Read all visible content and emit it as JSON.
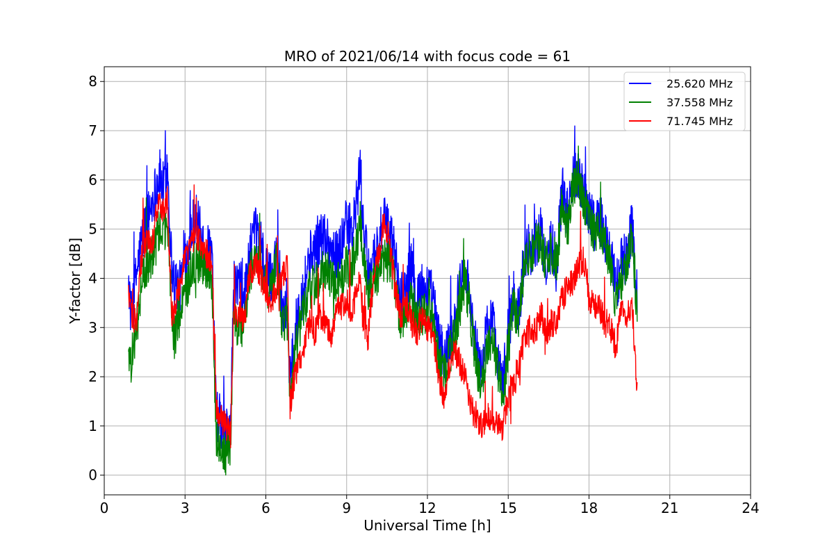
{
  "chart_data": {
    "type": "line",
    "title": "MRO of 2021/06/14 with focus code = 61",
    "xlabel": "Universal Time [h]",
    "ylabel": "Y-factor [dB]",
    "xlim": [
      0,
      24
    ],
    "ylim": [
      -0.4,
      8.3
    ],
    "xticks": [
      0,
      3,
      6,
      9,
      12,
      15,
      18,
      21,
      24
    ],
    "yticks": [
      0,
      1,
      2,
      3,
      4,
      5,
      6,
      7,
      8
    ],
    "grid": true,
    "legend_position": "top-right",
    "series": [
      {
        "name": "25.620 MHz",
        "color": "#0000ff",
        "x": [
          0.9,
          1.0,
          1.2,
          1.4,
          1.6,
          1.8,
          1.95,
          2.05,
          2.2,
          2.35,
          2.5,
          2.6,
          2.8,
          3.0,
          3.2,
          3.4,
          3.6,
          3.8,
          4.0,
          4.15,
          4.3,
          4.5,
          4.7,
          4.8,
          5.0,
          5.2,
          5.4,
          5.6,
          5.8,
          6.0,
          6.2,
          6.4,
          6.6,
          6.8,
          6.9,
          7.0,
          7.2,
          7.4,
          7.6,
          7.8,
          8.0,
          8.2,
          8.4,
          8.6,
          8.8,
          9.0,
          9.2,
          9.4,
          9.5,
          9.6,
          9.8,
          10.0,
          10.2,
          10.4,
          10.6,
          10.8,
          11.0,
          11.2,
          11.4,
          11.6,
          11.8,
          12.0,
          12.2,
          12.4,
          12.6,
          12.8,
          13.0,
          13.2,
          13.4,
          13.6,
          13.8,
          14.0,
          14.2,
          14.4,
          14.6,
          14.8,
          15.0,
          15.2,
          15.4,
          15.6,
          15.8,
          16.0,
          16.2,
          16.4,
          16.6,
          16.8,
          17.0,
          17.2,
          17.4,
          17.6,
          17.8,
          18.0,
          18.2,
          18.4,
          18.6,
          18.8,
          19.0,
          19.2,
          19.4,
          19.6,
          19.8
        ],
        "values": [
          4.0,
          3.2,
          4.1,
          4.8,
          5.2,
          5.6,
          5.9,
          6.1,
          5.8,
          6.3,
          4.3,
          3.9,
          3.8,
          4.3,
          4.9,
          5.3,
          4.8,
          4.6,
          4.4,
          1.3,
          1.1,
          0.8,
          1.0,
          3.8,
          3.9,
          3.6,
          4.5,
          4.9,
          4.8,
          4.1,
          4.0,
          4.6,
          3.4,
          3.5,
          1.8,
          2.4,
          3.4,
          3.8,
          4.4,
          4.6,
          4.8,
          4.9,
          4.6,
          4.4,
          4.7,
          5.1,
          4.9,
          5.6,
          6.3,
          5.2,
          4.1,
          4.4,
          4.8,
          5.1,
          4.9,
          4.5,
          3.5,
          3.9,
          4.2,
          3.7,
          3.8,
          3.8,
          3.6,
          2.8,
          2.3,
          2.7,
          3.1,
          3.8,
          4.3,
          3.5,
          2.6,
          2.1,
          2.9,
          3.2,
          2.5,
          1.8,
          2.9,
          3.6,
          3.3,
          4.5,
          4.6,
          4.7,
          4.9,
          4.2,
          4.7,
          4.4,
          5.8,
          5.3,
          6.1,
          6.2,
          5.7,
          5.4,
          5.1,
          5.2,
          4.8,
          4.5,
          3.8,
          4.3,
          4.4,
          5.1,
          3.5
        ]
      },
      {
        "name": "37.558 MHz",
        "color": "#008000",
        "x": [
          0.9,
          1.0,
          1.2,
          1.4,
          1.6,
          1.8,
          1.95,
          2.05,
          2.2,
          2.35,
          2.5,
          2.6,
          2.8,
          3.0,
          3.2,
          3.4,
          3.6,
          3.8,
          4.0,
          4.15,
          4.3,
          4.5,
          4.7,
          4.8,
          5.0,
          5.2,
          5.4,
          5.6,
          5.8,
          6.0,
          6.2,
          6.4,
          6.6,
          6.8,
          6.9,
          7.0,
          7.2,
          7.4,
          7.6,
          7.8,
          8.0,
          8.2,
          8.4,
          8.6,
          8.8,
          9.0,
          9.2,
          9.4,
          9.5,
          9.6,
          9.8,
          10.0,
          10.2,
          10.4,
          10.6,
          10.8,
          11.0,
          11.2,
          11.4,
          11.6,
          11.8,
          12.0,
          12.2,
          12.4,
          12.6,
          12.8,
          13.0,
          13.2,
          13.4,
          13.6,
          13.8,
          14.0,
          14.2,
          14.4,
          14.6,
          14.8,
          15.0,
          15.2,
          15.4,
          15.6,
          15.8,
          16.0,
          16.2,
          16.4,
          16.6,
          16.8,
          17.0,
          17.2,
          17.4,
          17.6,
          17.8,
          18.0,
          18.2,
          18.4,
          18.6,
          18.8,
          19.0,
          19.2,
          19.4,
          19.6,
          19.8
        ],
        "values": [
          2.6,
          2.3,
          3.0,
          3.9,
          4.3,
          4.5,
          4.8,
          5.0,
          4.9,
          5.2,
          3.4,
          2.8,
          3.2,
          3.6,
          4.1,
          4.4,
          4.3,
          4.2,
          4.0,
          0.8,
          0.6,
          0.4,
          0.7,
          3.2,
          3.0,
          3.1,
          4.1,
          4.4,
          4.3,
          3.9,
          3.7,
          4.4,
          3.0,
          3.2,
          1.4,
          2.0,
          2.9,
          3.3,
          3.7,
          3.9,
          4.1,
          4.2,
          4.0,
          3.8,
          4.0,
          4.3,
          4.2,
          4.8,
          5.2,
          4.5,
          3.6,
          3.9,
          4.2,
          4.4,
          4.3,
          3.9,
          3.1,
          3.4,
          3.6,
          3.2,
          3.3,
          3.3,
          3.2,
          2.4,
          2.0,
          2.4,
          2.8,
          3.4,
          4.0,
          3.2,
          2.3,
          1.8,
          2.5,
          2.9,
          2.2,
          1.5,
          2.6,
          3.4,
          3.2,
          4.3,
          4.5,
          4.7,
          4.8,
          4.3,
          4.6,
          4.3,
          5.5,
          5.0,
          5.8,
          6.0,
          5.6,
          5.2,
          4.9,
          5.0,
          4.6,
          4.2,
          3.5,
          4.0,
          4.2,
          4.9,
          3.2
        ]
      },
      {
        "name": "71.745 MHz",
        "color": "#ff0000",
        "x": [
          0.9,
          1.0,
          1.2,
          1.4,
          1.6,
          1.8,
          1.95,
          2.05,
          2.2,
          2.35,
          2.5,
          2.6,
          2.8,
          3.0,
          3.2,
          3.4,
          3.6,
          3.8,
          4.0,
          4.15,
          4.3,
          4.5,
          4.7,
          4.8,
          5.0,
          5.2,
          5.4,
          5.6,
          5.8,
          6.0,
          6.2,
          6.4,
          6.6,
          6.8,
          6.9,
          7.0,
          7.2,
          7.4,
          7.6,
          7.8,
          8.0,
          8.2,
          8.4,
          8.6,
          8.8,
          9.0,
          9.2,
          9.4,
          9.5,
          9.6,
          9.8,
          10.0,
          10.2,
          10.4,
          10.6,
          10.8,
          11.0,
          11.2,
          11.4,
          11.6,
          11.8,
          12.0,
          12.2,
          12.4,
          12.6,
          12.8,
          13.0,
          13.2,
          13.4,
          13.6,
          13.8,
          14.0,
          14.2,
          14.4,
          14.6,
          14.8,
          15.0,
          15.2,
          15.4,
          15.6,
          15.8,
          16.0,
          16.2,
          16.4,
          16.6,
          16.8,
          17.0,
          17.2,
          17.4,
          17.6,
          17.8,
          18.0,
          18.2,
          18.4,
          18.6,
          18.8,
          19.0,
          19.2,
          19.4,
          19.6,
          19.8
        ],
        "values": [
          3.7,
          3.3,
          3.1,
          4.5,
          4.8,
          4.7,
          5.4,
          5.5,
          5.4,
          5.6,
          3.3,
          3.3,
          3.9,
          4.4,
          4.7,
          4.9,
          4.7,
          4.5,
          4.4,
          1.4,
          1.2,
          1.0,
          0.8,
          3.2,
          3.3,
          3.1,
          4.1,
          4.3,
          4.1,
          3.7,
          3.5,
          3.8,
          4.0,
          4.2,
          1.4,
          1.8,
          2.2,
          2.6,
          3.1,
          2.9,
          3.2,
          3.1,
          2.8,
          3.3,
          3.4,
          3.6,
          3.3,
          3.8,
          4.1,
          3.2,
          2.8,
          4.1,
          4.5,
          5.2,
          4.7,
          3.8,
          3.2,
          3.5,
          3.1,
          2.9,
          3.2,
          3.0,
          2.9,
          2.1,
          1.6,
          2.1,
          2.5,
          2.3,
          2.0,
          1.4,
          1.2,
          1.0,
          1.2,
          1.1,
          1.0,
          0.9,
          1.6,
          1.9,
          2.2,
          2.8,
          3.0,
          2.9,
          3.3,
          2.9,
          3.1,
          3.0,
          3.6,
          3.8,
          3.9,
          4.2,
          4.4,
          3.6,
          3.5,
          3.4,
          3.1,
          3.0,
          2.6,
          3.4,
          3.2,
          3.5,
          1.6
        ]
      }
    ]
  }
}
